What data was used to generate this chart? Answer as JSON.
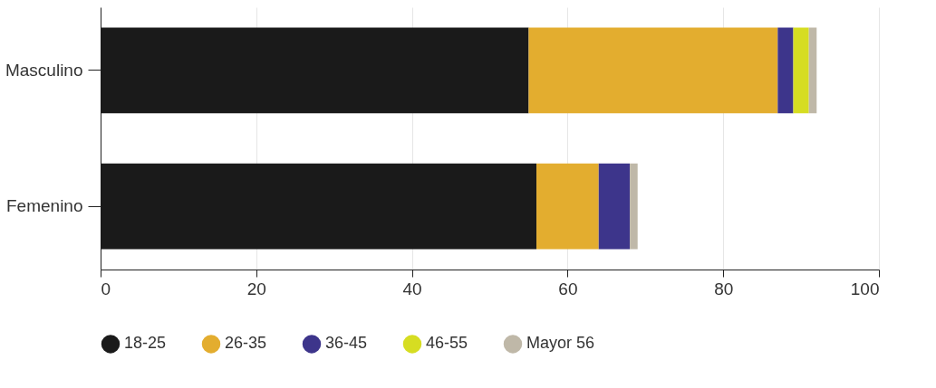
{
  "chart_data": {
    "type": "bar",
    "orientation": "horizontal",
    "stacked": true,
    "categories": [
      "Masculino",
      "Femenino"
    ],
    "series": [
      {
        "name": "18-25",
        "color": "#1a1a1a",
        "values": [
          55,
          56
        ]
      },
      {
        "name": "26-35",
        "color": "#e3ad2f",
        "values": [
          32,
          8
        ]
      },
      {
        "name": "36-45",
        "color": "#3d358b",
        "values": [
          2,
          4
        ]
      },
      {
        "name": "46-55",
        "color": "#d6dd22",
        "values": [
          2,
          0
        ]
      },
      {
        "name": "Mayor 56",
        "color": "#bfb8a8",
        "values": [
          1,
          1
        ]
      }
    ],
    "xlim": [
      0,
      100
    ],
    "xticks": [
      0,
      20,
      40,
      60,
      80,
      100
    ],
    "grid": "x",
    "legend": "bottom"
  }
}
